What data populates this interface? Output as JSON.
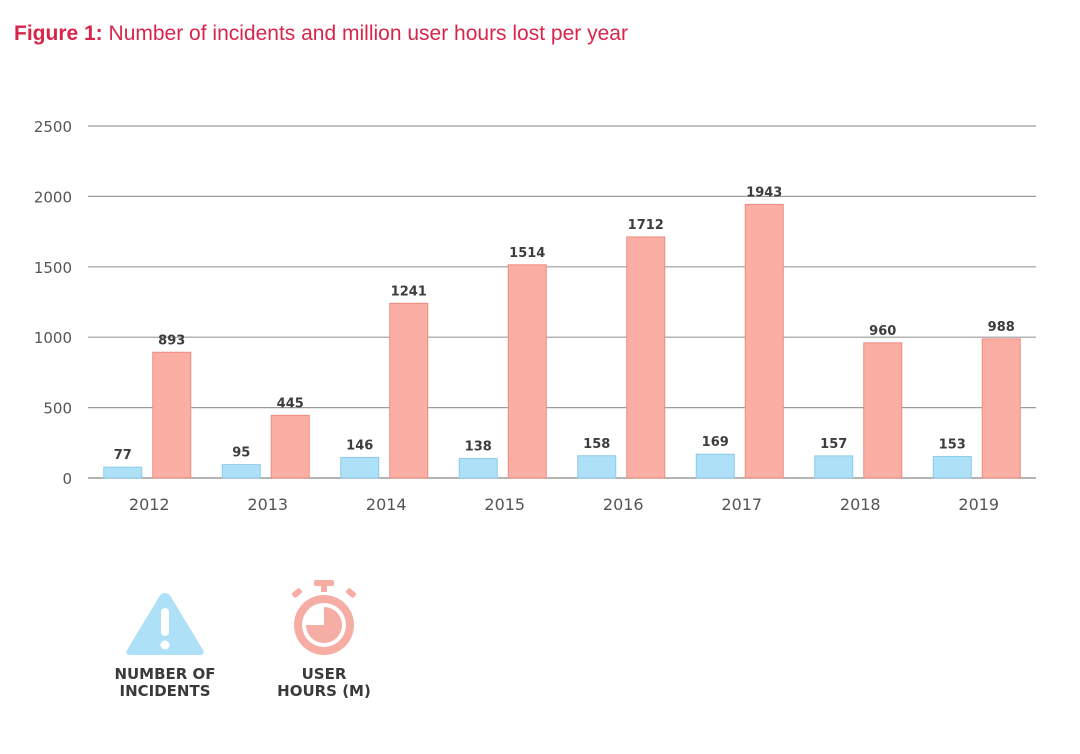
{
  "title": {
    "prefix": "Figure 1:",
    "text": "Number of incidents and million user hours lost per year"
  },
  "legend": {
    "incidents": {
      "line1": "NUMBER OF",
      "line2": "INCIDENTS",
      "icon": "warning-triangle-icon",
      "color": "#aee0f7"
    },
    "hours": {
      "line1": "USER",
      "line2": "HOURS (M)",
      "icon": "stopwatch-icon",
      "color": "#f5ada4"
    }
  },
  "chart_data": {
    "type": "bar",
    "categories": [
      "2012",
      "2013",
      "2014",
      "2015",
      "2016",
      "2017",
      "2018",
      "2019"
    ],
    "series": [
      {
        "name": "NUMBER OF INCIDENTS",
        "values": [
          77,
          95,
          146,
          138,
          158,
          169,
          157,
          153
        ],
        "color": "#aee0f7",
        "stroke": "#8ccbe8"
      },
      {
        "name": "USER HOURS (M)",
        "values": [
          893,
          445,
          1241,
          1514,
          1712,
          1943,
          960,
          988
        ],
        "color": "#fbaea4",
        "stroke": "#ee8a80"
      }
    ],
    "ylim": [
      0,
      2500
    ],
    "yticks": [
      0,
      500,
      1000,
      1500,
      2000,
      2500
    ],
    "grid": true,
    "legend_position": "bottom-left"
  }
}
